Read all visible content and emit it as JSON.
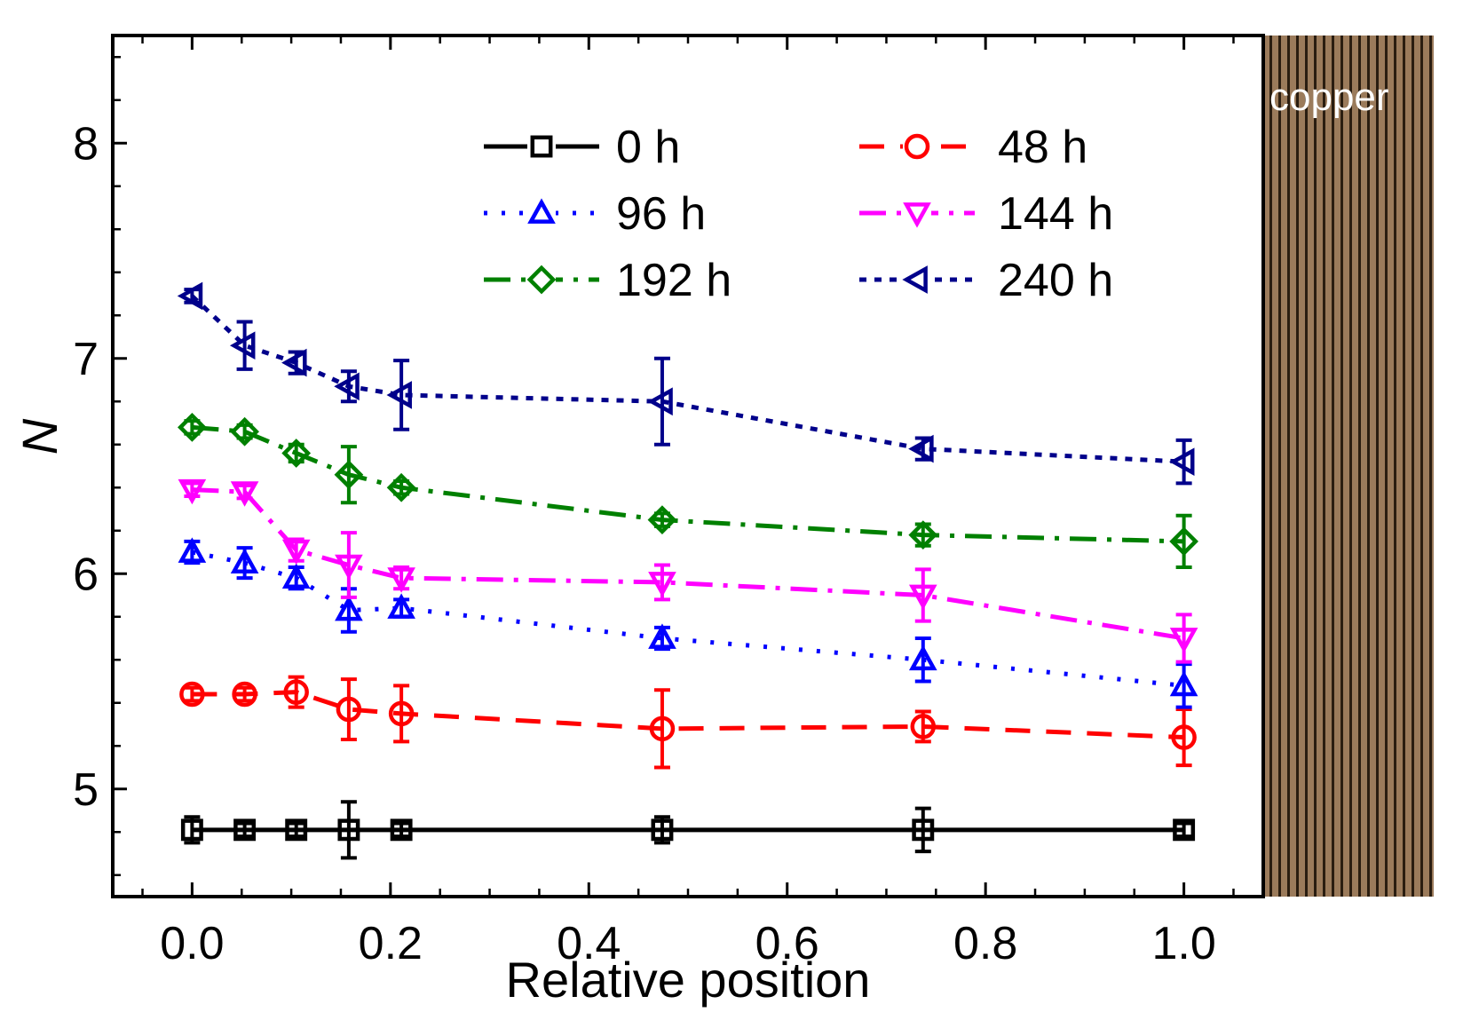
{
  "chart_data": {
    "type": "line",
    "title": "",
    "xlabel": "Relative position",
    "ylabel": "N",
    "xlim": [
      -0.08,
      1.08
    ],
    "ylim": [
      4.5,
      8.5
    ],
    "xticks": [
      0.0,
      0.2,
      0.4,
      0.6,
      0.8,
      1.0
    ],
    "xtick_labels": [
      "0.0",
      "0.2",
      "0.4",
      "0.6",
      "0.8",
      "1.0"
    ],
    "yticks": [
      5,
      6,
      7,
      8
    ],
    "ytick_labels": [
      "5",
      "6",
      "7",
      "8"
    ],
    "grid": false,
    "legend_position": "top",
    "annotation": "copper",
    "x": [
      0.0,
      0.053,
      0.105,
      0.158,
      0.211,
      0.474,
      0.737,
      1.0
    ],
    "series": [
      {
        "name": "0 h",
        "color": "#000000",
        "marker": "square",
        "dash": "solid",
        "values": [
          4.81,
          4.81,
          4.81,
          4.81,
          4.81,
          4.81,
          4.81,
          4.81
        ],
        "errors": [
          0.06,
          0.03,
          0.03,
          0.13,
          0.03,
          0.06,
          0.1,
          0.03
        ]
      },
      {
        "name": "48 h",
        "color": "#ff0000",
        "marker": "circle",
        "dash": "dash",
        "values": [
          5.44,
          5.44,
          5.45,
          5.37,
          5.35,
          5.28,
          5.29,
          5.24
        ],
        "errors": [
          0.03,
          0.03,
          0.07,
          0.14,
          0.13,
          0.18,
          0.07,
          0.13
        ]
      },
      {
        "name": "96 h",
        "color": "#0000ff",
        "marker": "triangle-up",
        "dash": "dot",
        "values": [
          6.1,
          6.05,
          5.98,
          5.83,
          5.84,
          5.7,
          5.6,
          5.48
        ],
        "errors": [
          0.05,
          0.07,
          0.05,
          0.1,
          0.04,
          0.05,
          0.1,
          0.1
        ]
      },
      {
        "name": "144 h",
        "color": "#ff00ff",
        "marker": "triangle-down",
        "dash": "dashdot",
        "values": [
          6.39,
          6.38,
          6.11,
          6.04,
          5.98,
          5.96,
          5.9,
          5.7
        ],
        "errors": [
          0.03,
          0.03,
          0.05,
          0.15,
          0.05,
          0.08,
          0.12,
          0.11
        ]
      },
      {
        "name": "192 h",
        "color": "#008000",
        "marker": "diamond",
        "dash": "dashdot",
        "values": [
          6.68,
          6.66,
          6.56,
          6.46,
          6.4,
          6.25,
          6.18,
          6.15
        ],
        "errors": [
          0.03,
          0.03,
          0.04,
          0.13,
          0.03,
          0.03,
          0.05,
          0.12
        ]
      },
      {
        "name": "240 h",
        "color": "#00008b",
        "marker": "triangle-left",
        "dash": "shortdot",
        "values": [
          7.29,
          7.06,
          6.98,
          6.87,
          6.83,
          6.8,
          6.58,
          6.52
        ],
        "errors": [
          0.03,
          0.11,
          0.05,
          0.07,
          0.16,
          0.2,
          0.05,
          0.1
        ]
      }
    ]
  }
}
